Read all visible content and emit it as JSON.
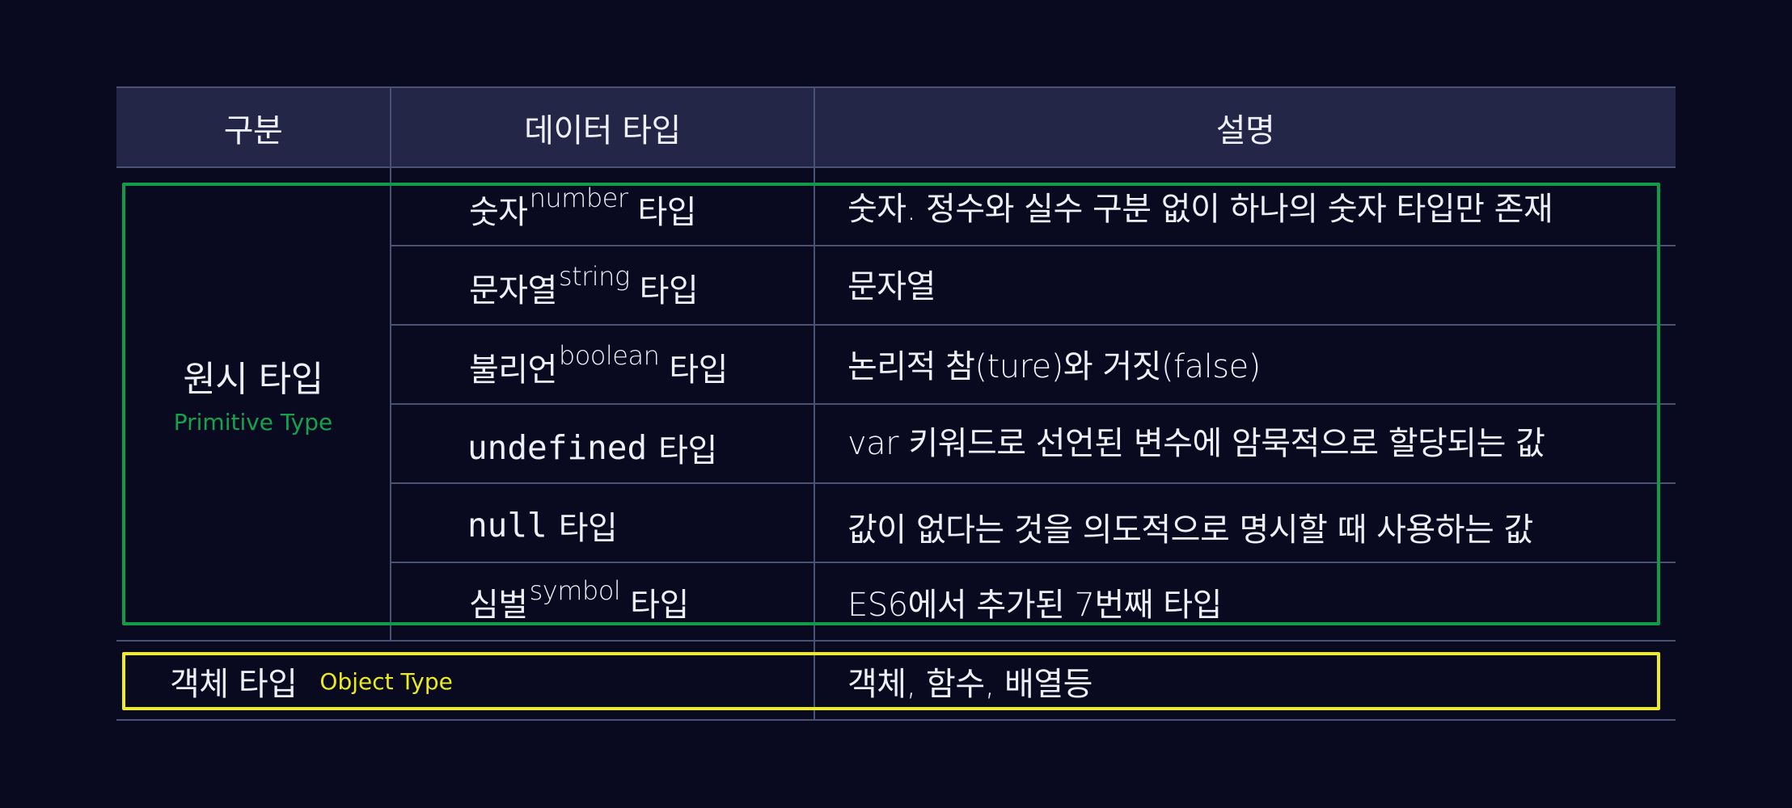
{
  "header": {
    "category": "구분",
    "data_type": "데이터 타입",
    "description": "설명"
  },
  "primitive": {
    "label": "원시 타입",
    "note": "Primitive Type",
    "rows": [
      {
        "prefix": "숫자",
        "en": "number",
        "suffix": "타입",
        "mono": "",
        "description": "숫자. 정수와 실수 구분 없이 하나의 숫자 타입만 존재"
      },
      {
        "prefix": "문자열",
        "en": "string",
        "suffix": "타입",
        "mono": "",
        "description": "문자열"
      },
      {
        "prefix": "불리언",
        "en": "boolean",
        "suffix": "타입",
        "mono": "",
        "description": "논리적 참(ture)와 거짓(false)"
      },
      {
        "prefix": "",
        "en": "",
        "suffix": "타입",
        "mono": "undefined",
        "description": "var 키워드로 선언된 변수에 암묵적으로 할당되는 값"
      },
      {
        "prefix": "",
        "en": "",
        "suffix": "타입",
        "mono": "null",
        "description": "값이 없다는 것을 의도적으로 명시할 때 사용하는 값"
      },
      {
        "prefix": "심벌",
        "en": "symbol",
        "suffix": "타입",
        "mono": "",
        "description": "ES6에서 추가된 7번째 타입"
      }
    ]
  },
  "object": {
    "label": "객체 타입",
    "note": "Object Type",
    "description": "객체, 함수, 배열등"
  },
  "colors": {
    "background": "#090a20",
    "header_background": "#232646",
    "grid_line": "#4a5274",
    "primitive_highlight": "#0f9b48",
    "object_highlight": "#f0eb1a"
  }
}
